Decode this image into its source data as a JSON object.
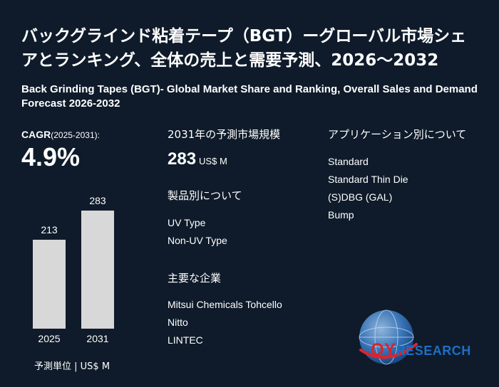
{
  "title_ja": "バックグラインド粘着テープ（BGT）ーグローバル市場シェアとランキング、全体の売上と需要予測、2026～2032",
  "title_en": "Back Grinding Tapes (BGT)- Global Market Share and Ranking, Overall Sales and Demand Forecast 2026-2032",
  "cagr": {
    "label": "CAGR",
    "years": "(2025-2031):",
    "value": "4.9%"
  },
  "chart_data": {
    "type": "bar",
    "categories": [
      "2025",
      "2031"
    ],
    "values": [
      213,
      283
    ],
    "value_labels": [
      "213",
      "283"
    ],
    "ylim": [
      0,
      300
    ]
  },
  "unit_note": "予測単位 | US$ M",
  "market_size": {
    "heading": "2031年の予測市場規模",
    "value": "283",
    "unit": "US$ M"
  },
  "by_product": {
    "heading": "製品別について",
    "items": [
      "UV Type",
      "Non-UV Type"
    ]
  },
  "companies": {
    "heading": "主要な企業",
    "items": [
      "Mitsui Chemicals Tohcello",
      "Nitto",
      "LINTEC"
    ]
  },
  "by_application": {
    "heading": "アプリケーション別について",
    "items": [
      "Standard",
      "Standard Thin Die",
      "(S)DBG (GAL)",
      "Bump"
    ]
  },
  "logo": {
    "qy": "QY",
    "research": "RESEARCH"
  },
  "colors": {
    "background": "#0f1b2a",
    "bar": "#d8d8d8",
    "logo_red": "#d8252d",
    "logo_blue": "#1f6dc4"
  }
}
